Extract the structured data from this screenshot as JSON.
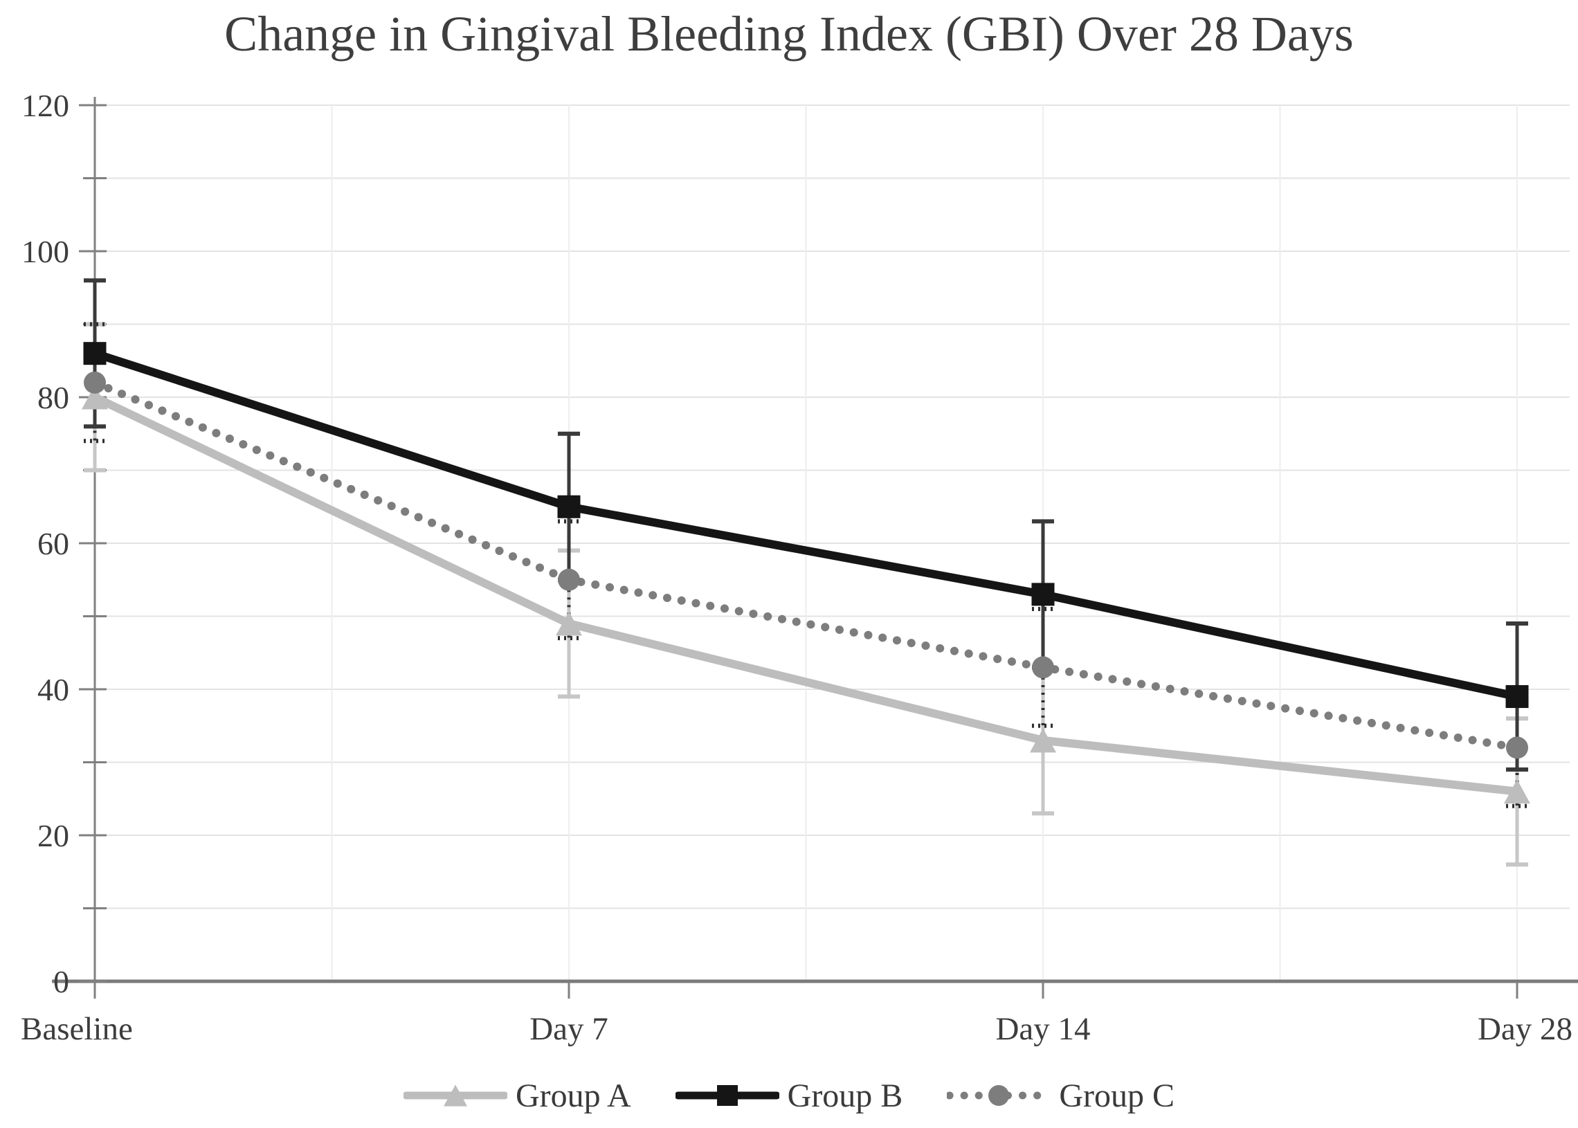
{
  "chart_data": {
    "type": "line",
    "title": "Change in Gingival Bleeding Index (GBI) Over 28 Days",
    "categories": [
      "Baseline",
      "Day 7",
      "Day 14",
      "Day 28"
    ],
    "xlabel": "",
    "ylabel": "",
    "ylim": [
      0,
      120
    ],
    "ytick_step": 20,
    "y_minor_step": 10,
    "y_tick_labels": [
      "0",
      "20",
      "40",
      "60",
      "80",
      "100",
      "120"
    ],
    "grid": true,
    "legend_position": "bottom",
    "series": [
      {
        "name": "Group A",
        "marker": "triangle",
        "line_style": "solid",
        "color": "#bdbdbd",
        "error_color": "#c6c6c6",
        "error_style": "solid",
        "values": [
          80,
          49,
          33,
          26
        ],
        "error": [
          10,
          10,
          10,
          10
        ]
      },
      {
        "name": "Group B",
        "marker": "square",
        "line_style": "solid",
        "color": "#151515",
        "error_color": "#3a3a3a",
        "error_style": "solid",
        "values": [
          86,
          65,
          53,
          39
        ],
        "error": [
          10,
          10,
          10,
          10
        ]
      },
      {
        "name": "Group C",
        "marker": "circle",
        "line_style": "dotted",
        "color": "#7d7d7d",
        "error_color": "#2f2f2f",
        "error_style": "dotted",
        "values": [
          82,
          55,
          43,
          32
        ],
        "error": [
          8,
          8,
          8,
          8
        ]
      }
    ],
    "colors": {
      "axis": "#808080",
      "x_axis": "#7a7a7a",
      "grid_horizontal": "#e3e3e3",
      "grid_vertical": "#eeeeee",
      "text": "#3d3d3d",
      "title_text": "#3e3e3e",
      "background": "#ffffff"
    }
  }
}
